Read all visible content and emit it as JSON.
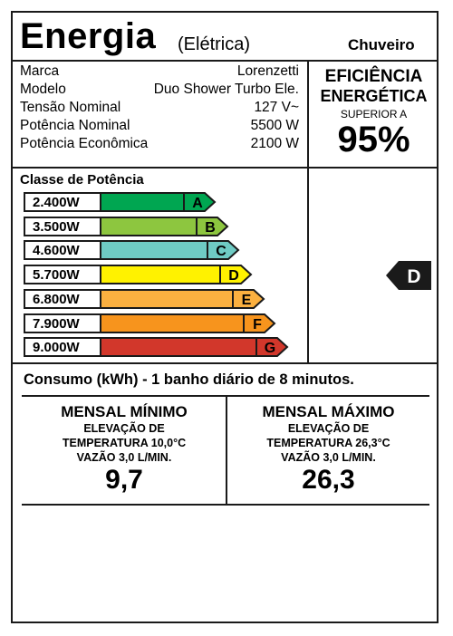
{
  "header": {
    "title": "Energia",
    "subtitle": "(Elétrica)",
    "product": "Chuveiro"
  },
  "specs": [
    {
      "label": "Marca",
      "value": "Lorenzetti"
    },
    {
      "label": "Modelo",
      "value": "Duo Shower Turbo Ele."
    },
    {
      "label": "Tensão Nominal",
      "value": "127 V~"
    },
    {
      "label": "Potência Nominal",
      "value": "5500 W"
    },
    {
      "label": "Potência Econômica",
      "value": "2100 W"
    }
  ],
  "efficiency": {
    "line1": "EFICIÊNCIA",
    "line2": "ENERGÉTICA",
    "line3": "SUPERIOR A",
    "value": "95%"
  },
  "power_class": {
    "title": "Classe de Potência",
    "bars": [
      {
        "power": "2.400W",
        "letter": "A",
        "color": "#00a651"
      },
      {
        "power": "3.500W",
        "letter": "B",
        "color": "#8dc63f"
      },
      {
        "power": "4.600W",
        "letter": "C",
        "color": "#6fcbc4"
      },
      {
        "power": "5.700W",
        "letter": "D",
        "color": "#fff200"
      },
      {
        "power": "6.800W",
        "letter": "E",
        "color": "#fbb040"
      },
      {
        "power": "7.900W",
        "letter": "F",
        "color": "#f7941d"
      },
      {
        "power": "9.000W",
        "letter": "G",
        "color": "#d2372b"
      }
    ],
    "indicator": "D"
  },
  "consumption": {
    "title": "Consumo (kWh) - 1 banho diário de 8 minutos.",
    "min": {
      "heading": "MENSAL MÍNIMO",
      "line1": "ELEVAÇÃO DE",
      "line2": "TEMPERATURA 10,0°C",
      "line3": "VAZÃO 3,0 L/MIN.",
      "value": "9,7"
    },
    "max": {
      "heading": "MENSAL MÁXIMO",
      "line1": "ELEVAÇÃO DE",
      "line2": "TEMPERATURA 26,3°C",
      "line3": "VAZÃO 3,0 L/MIN.",
      "value": "26,3"
    }
  }
}
